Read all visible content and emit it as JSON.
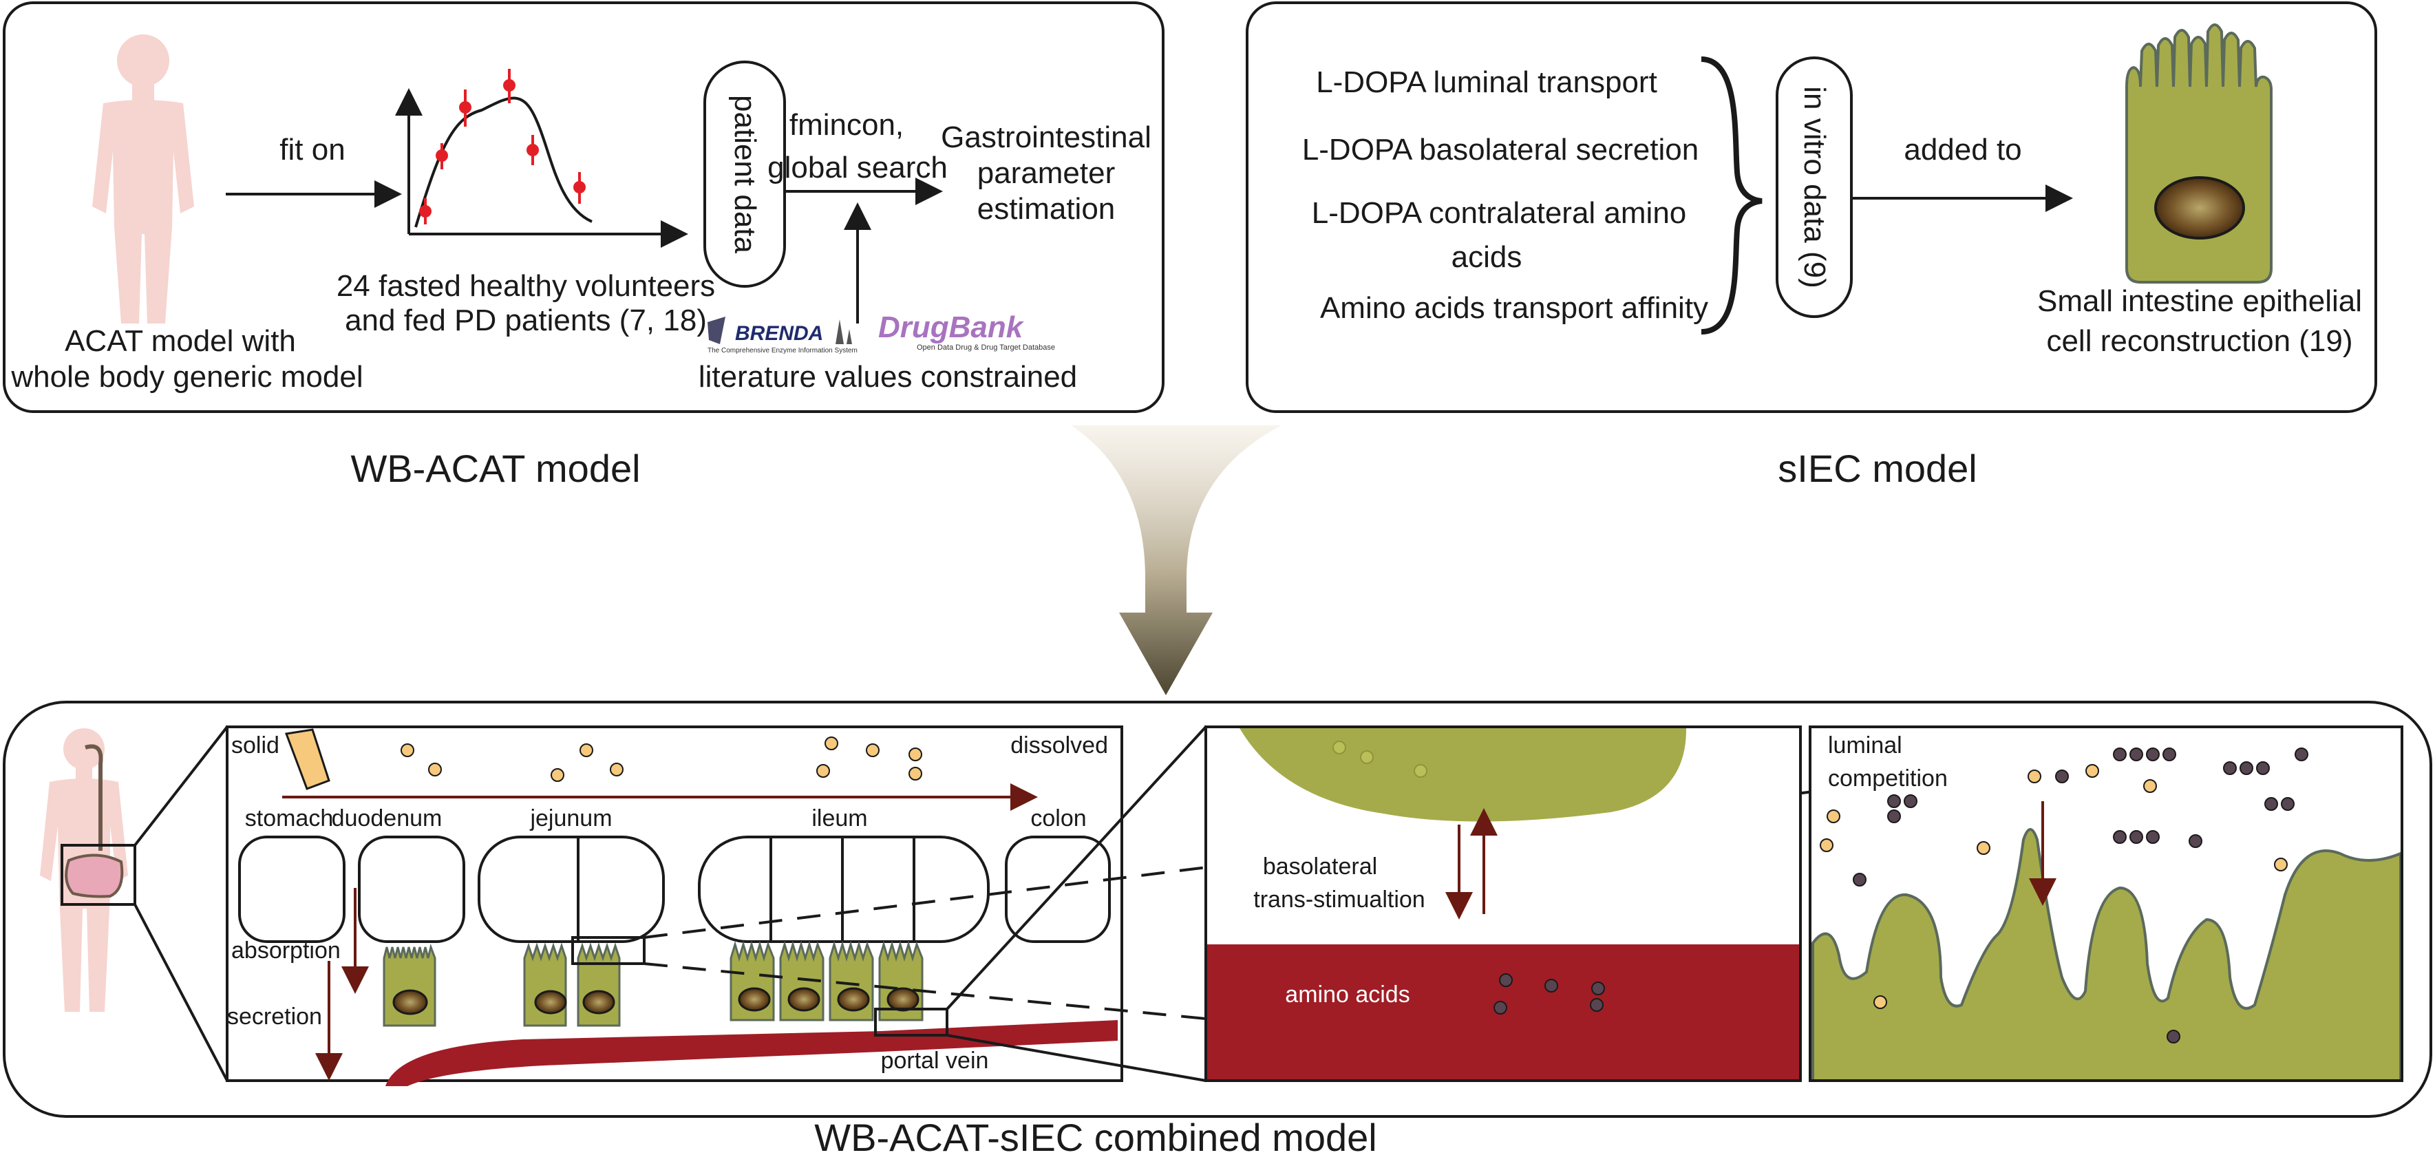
{
  "colors": {
    "tissue_green": "#a5ab4a",
    "blood_red": "#a01d26",
    "body_pink": "#f6d4d0",
    "nucleus_brown": "#5a3a17",
    "drug_particle": "#f7c97d",
    "amino_particle": "#574652",
    "arrow_dark_red": "#6a1a12"
  },
  "top_left": {
    "fit_on": "fit on",
    "acat_caption": [
      "ACAT model with",
      "whole body generic model"
    ],
    "volunteers_caption": [
      "24 fasted healthy volunteers",
      "and fed PD patients (7, 18)"
    ],
    "patient_data": "patient data",
    "optimizer": [
      "fmincon,",
      "global search"
    ],
    "estimation": [
      "Gastrointestinal",
      "parameter",
      "estimation"
    ],
    "brenda_logo": "BRENDA",
    "brenda_tagline": "The Comprehensive Enzyme Information System",
    "drugbank_logo": "DrugBank",
    "drugbank_tagline": "Open Data Drug & Drug Target Database",
    "literature": "literature values constrained"
  },
  "top_right": {
    "items": [
      "L-DOPA luminal transport",
      "L-DOPA basolateral secretion",
      "L-DOPA contralateral amino",
      "acids",
      "Amino acids transport affinity"
    ],
    "in_vitro": "in vitro data (9)",
    "added_to": "added to",
    "cell_caption": [
      "Small intestine epithelial",
      "cell reconstruction (19)"
    ]
  },
  "section_titles": {
    "wb_acat": "WB-ACAT model",
    "siec": "sIEC model",
    "combined": "WB-ACAT-sIEC combined model"
  },
  "bottom": {
    "solid": "solid",
    "dissolved": "dissolved",
    "segments": [
      "stomach",
      "duodenum",
      "jejunum",
      "ileum",
      "colon"
    ],
    "absorption": "absorption",
    "secretion": "secretion",
    "portal_vein": "portal vein",
    "basolateral": [
      "basolateral",
      "trans-stimualtion"
    ],
    "amino_acids": "amino acids",
    "luminal": [
      "luminal",
      "competition"
    ]
  }
}
